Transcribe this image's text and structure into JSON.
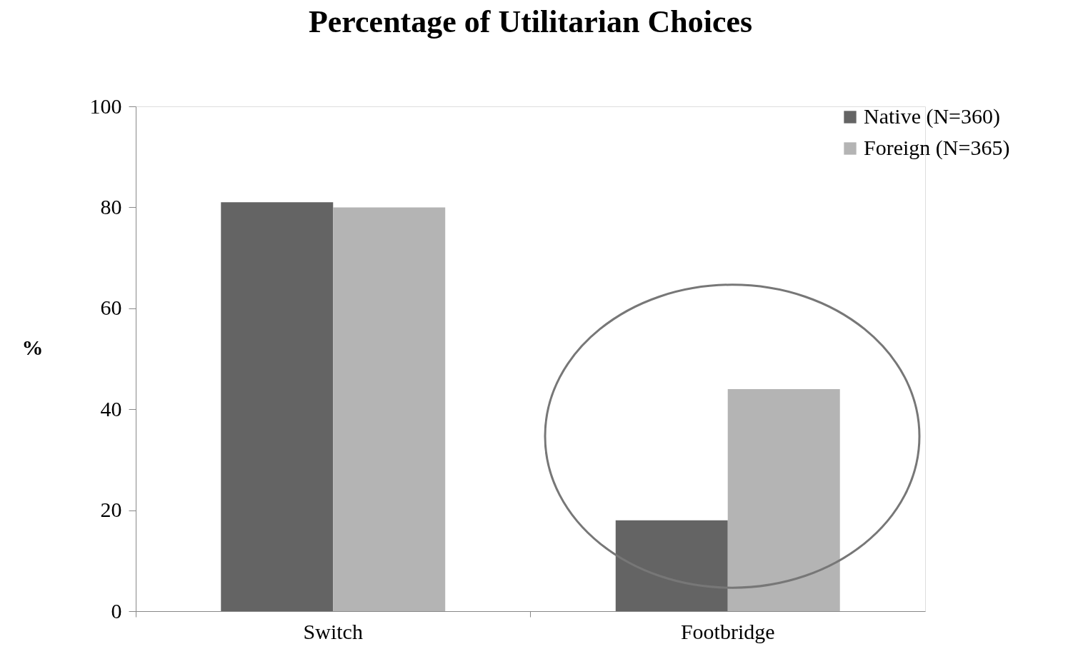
{
  "chart_data": {
    "type": "bar",
    "title": "Percentage of Utilitarian Choices",
    "ylabel": "%",
    "categories": [
      "Switch",
      "Footbridge"
    ],
    "series": [
      {
        "name": "Native (N=360)",
        "color": "#646464",
        "values": [
          81,
          18
        ]
      },
      {
        "name": "Foreign (N=365)",
        "color": "#b4b4b4",
        "values": [
          80,
          44
        ]
      }
    ],
    "ylim": [
      0,
      100
    ],
    "yticks": [
      0,
      20,
      40,
      60,
      80,
      100
    ],
    "grid": false,
    "legend": "top right"
  }
}
